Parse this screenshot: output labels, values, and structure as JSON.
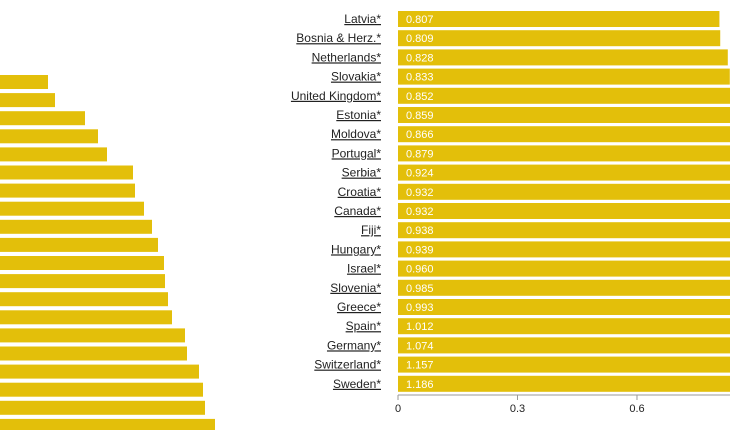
{
  "chart_data": {
    "type": "bar",
    "orientation": "horizontal",
    "bar_color": "#E3BF0A",
    "x_ticks": [
      0,
      0.3,
      0.6
    ],
    "x_tick_labels": [
      "0",
      "0.3",
      "0.6"
    ],
    "categories": [
      "Latvia*",
      "Bosnia & Herz.*",
      "Netherlands*",
      "Slovakia*",
      "United Kingdom*",
      "Estonia*",
      "Moldova*",
      "Portugal*",
      "Serbia*",
      "Croatia*",
      "Canada*",
      "Fiji*",
      "Hungary*",
      "Israel*",
      "Slovenia*",
      "Greece*",
      "Spain*",
      "Germany*",
      "Switzerland*",
      "Sweden*"
    ],
    "values": [
      0.807,
      0.809,
      0.828,
      0.833,
      0.852,
      0.859,
      0.866,
      0.879,
      0.924,
      0.932,
      0.932,
      0.938,
      0.939,
      0.96,
      0.985,
      0.993,
      1.012,
      1.074,
      1.157,
      1.186
    ],
    "value_labels": [
      "0.807",
      "0.809",
      "0.828",
      "0.833",
      "0.852",
      "0.859",
      "0.866",
      "0.879",
      "0.924",
      "0.932",
      "0.932",
      "0.938",
      "0.939",
      "0.960",
      "0.985",
      "0.993",
      "1.012",
      "1.074",
      "1.157",
      "1.186"
    ],
    "left_panel_values": [
      0.117,
      0.133,
      0.207,
      0.24,
      0.26,
      0.325,
      0.33,
      0.35,
      0.37,
      0.385,
      0.4,
      0.403,
      0.41,
      0.42,
      0.45,
      0.455,
      0.485,
      0.495,
      0.5,
      0.525
    ]
  }
}
